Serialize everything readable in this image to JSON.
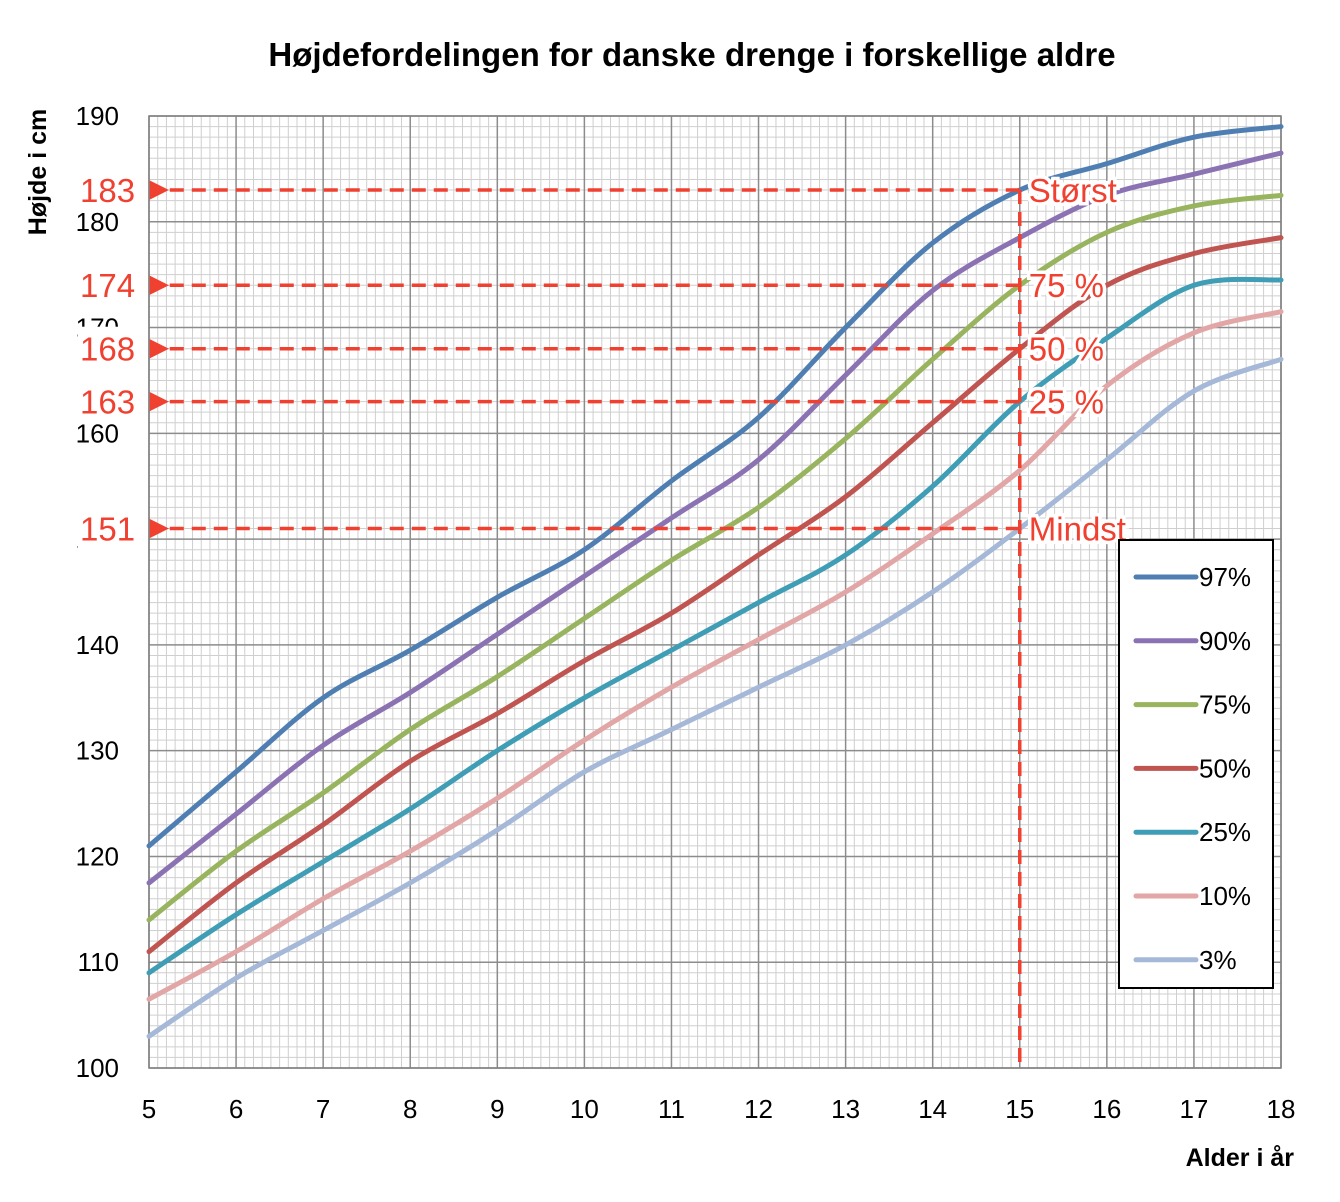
{
  "chart_data": {
    "type": "line",
    "title": "Højdefordelingen for danske drenge i forskellige aldre",
    "xlabel": "Alder i år",
    "ylabel": "Højde i cm",
    "xlim": [
      5,
      18
    ],
    "ylim": [
      100,
      190
    ],
    "x_ticks": [
      5,
      6,
      7,
      8,
      9,
      10,
      11,
      12,
      13,
      14,
      15,
      16,
      17,
      18
    ],
    "y_ticks": [
      100,
      110,
      120,
      130,
      140,
      150,
      160,
      170,
      180,
      190
    ],
    "grid": true,
    "legend_position": "lower-right",
    "x": [
      5,
      6,
      7,
      8,
      9,
      10,
      11,
      12,
      13,
      14,
      15,
      16,
      17,
      18
    ],
    "series": [
      {
        "name": "97%",
        "color": "#4f7fb2",
        "values": [
          121,
          128,
          135,
          139.5,
          144.5,
          149,
          155.5,
          161.5,
          170,
          178,
          183,
          185.5,
          188,
          189
        ]
      },
      {
        "name": "90%",
        "color": "#8a72b3",
        "values": [
          117.5,
          124,
          130.5,
          135.5,
          141,
          146.5,
          152,
          157.5,
          165.5,
          173.5,
          178.5,
          182.5,
          184.5,
          186.5
        ]
      },
      {
        "name": "75%",
        "color": "#98b45e",
        "values": [
          114,
          120.5,
          126,
          132,
          137,
          142.5,
          148,
          153,
          159.5,
          167,
          174,
          179,
          181.5,
          182.5
        ]
      },
      {
        "name": "50%",
        "color": "#c05450",
        "values": [
          111,
          117.5,
          123,
          129,
          133.5,
          138.5,
          143,
          148.5,
          154,
          161,
          168,
          174,
          177,
          178.5
        ]
      },
      {
        "name": "25%",
        "color": "#3f9eb5",
        "values": [
          109,
          114.5,
          119.5,
          124.5,
          130,
          135,
          139.5,
          144,
          148.5,
          155,
          163,
          169,
          174,
          174.5
        ]
      },
      {
        "name": "10%",
        "color": "#e2a6a6",
        "values": [
          106.5,
          111,
          116,
          120.5,
          125.5,
          131,
          136,
          140.5,
          145,
          150.5,
          156.5,
          164.5,
          169.5,
          171.5
        ]
      },
      {
        "name": "3%",
        "color": "#a5b8d8",
        "values": [
          103,
          108.5,
          113,
          117.5,
          122.5,
          128,
          132,
          136,
          140,
          145,
          151,
          157.5,
          164,
          167
        ]
      }
    ],
    "annotations": {
      "age_marker": 15,
      "color": "#f04030",
      "items": [
        {
          "value": 183,
          "value_label": "183",
          "label": "Størst"
        },
        {
          "value": 174,
          "value_label": "174",
          "label": "75 %"
        },
        {
          "value": 168,
          "value_label": "168",
          "label": "50 %"
        },
        {
          "value": 163,
          "value_label": "163",
          "label": "25 %"
        },
        {
          "value": 151,
          "value_label": "151",
          "label": "Mindst"
        }
      ]
    }
  }
}
